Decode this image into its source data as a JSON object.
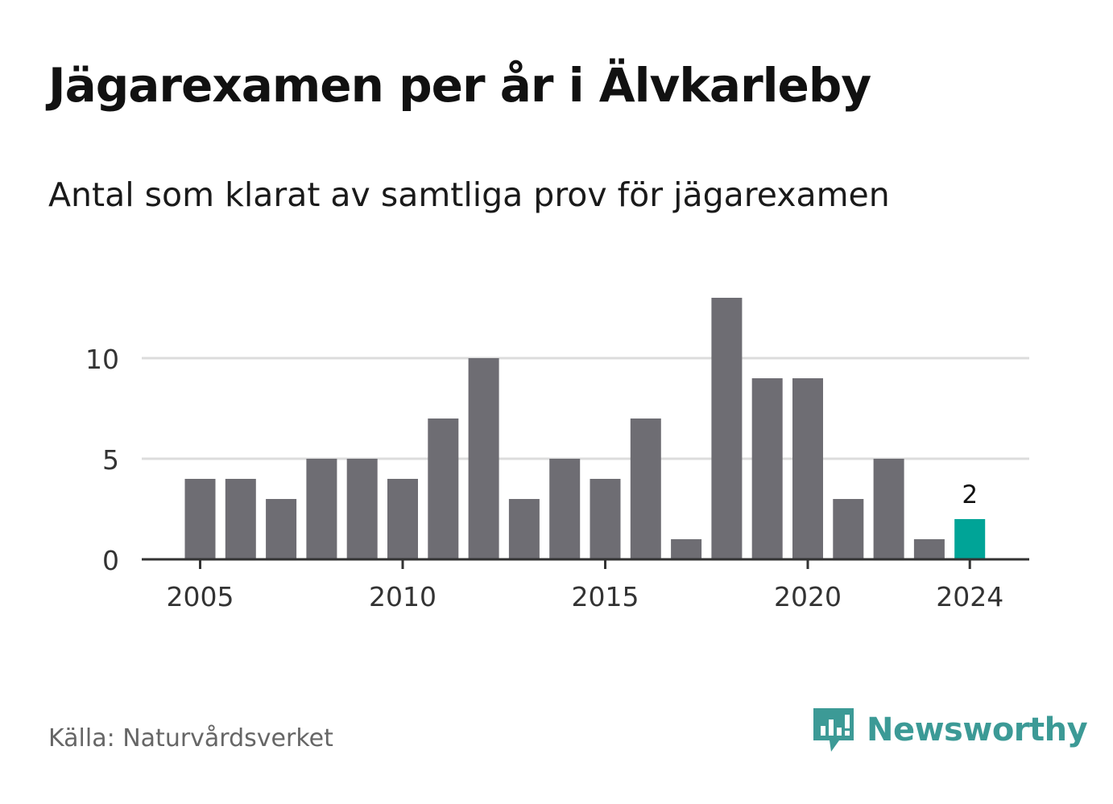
{
  "title": "Jägarexamen per år i Älvkarleby",
  "subtitle": "Antal som klarat av samtliga prov för jägarexamen",
  "source": "Källa: Naturvårdsverket",
  "logo": {
    "text": "Newsworthy",
    "icon": "newsworthy-logo-icon",
    "color": "#3c9a96"
  },
  "colors": {
    "bar": "#6e6d73",
    "highlight": "#00a497",
    "grid": "#dcdcdc",
    "axis": "#333333"
  },
  "chart_data": {
    "type": "bar",
    "x": [
      2005,
      2006,
      2007,
      2008,
      2009,
      2010,
      2011,
      2012,
      2013,
      2014,
      2015,
      2016,
      2017,
      2018,
      2019,
      2020,
      2021,
      2022,
      2023,
      2024
    ],
    "values": [
      4,
      4,
      3,
      5,
      5,
      4,
      7,
      10,
      3,
      5,
      4,
      7,
      1,
      13,
      9,
      9,
      3,
      5,
      1,
      2
    ],
    "x_ticks": [
      2005,
      2010,
      2015,
      2020,
      2024
    ],
    "y_ticks": [
      0,
      5,
      10
    ],
    "ylim": [
      0,
      13
    ],
    "grid": true,
    "highlight": {
      "x": 2024,
      "label": "2"
    }
  }
}
